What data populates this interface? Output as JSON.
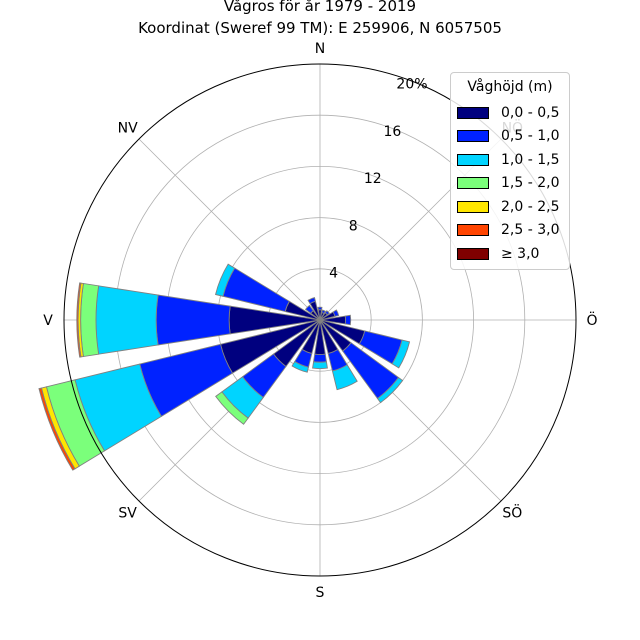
{
  "title_line1": "Vågros för år 1979 - 2019",
  "title_line2": "Koordinat (Sweref 99 TM): E 259906, N 6057505",
  "chart_data": {
    "type": "windrose",
    "directions": [
      "N",
      "NNÖ",
      "NÖ",
      "ÖNÖ",
      "Ö",
      "ÖSÖ",
      "SÖ",
      "SSÖ",
      "S",
      "SSV",
      "SV",
      "VSV",
      "V",
      "VNV",
      "NV",
      "NNV"
    ],
    "compass_labels": [
      {
        "label": "N",
        "angle": 0
      },
      {
        "label": "NÖ",
        "angle": 45
      },
      {
        "label": "Ö",
        "angle": 90
      },
      {
        "label": "SÖ",
        "angle": 135
      },
      {
        "label": "S",
        "angle": 180
      },
      {
        "label": "SV",
        "angle": 225
      },
      {
        "label": "V",
        "angle": 270
      },
      {
        "label": "NV",
        "angle": 315
      }
    ],
    "radial_ticks": [
      "4",
      "8",
      "12",
      "16",
      "20%"
    ],
    "radial_values": [
      4,
      8,
      12,
      16,
      20
    ],
    "rmax": 20,
    "legend_title": "Våghöjd (m)",
    "bins": [
      {
        "label": "0,0 - 0,5",
        "color": "#00007f"
      },
      {
        "label": "0,5 - 1,0",
        "color": "#0022ff"
      },
      {
        "label": "1,0 - 1,5",
        "color": "#00d4ff"
      },
      {
        "label": "1,5 - 2,0",
        "color": "#7bff7b"
      },
      {
        "label": "2,0 - 2,5",
        "color": "#ffe600"
      },
      {
        "label": "2,5 - 3,0",
        "color": "#ff4400"
      },
      {
        "label": "≥ 3,0",
        "color": "#7f0000"
      }
    ],
    "values": [
      [
        0.8,
        0.2,
        0,
        0,
        0,
        0,
        0
      ],
      [
        0.6,
        0.2,
        0,
        0,
        0,
        0,
        0
      ],
      [
        0.7,
        0.2,
        0,
        0,
        0,
        0,
        0
      ],
      [
        1.2,
        0.3,
        0,
        0,
        0,
        0,
        0
      ],
      [
        2.0,
        0.4,
        0,
        0,
        0,
        0,
        0
      ],
      [
        3.6,
        3.0,
        0.6,
        0,
        0,
        0,
        0
      ],
      [
        3.0,
        4.6,
        0.4,
        0,
        0,
        0,
        0
      ],
      [
        2.7,
        1.4,
        1.5,
        0,
        0,
        0,
        0
      ],
      [
        2.7,
        0.6,
        0.5,
        0,
        0,
        0,
        0
      ],
      [
        2.7,
        1.1,
        0.4,
        0,
        0,
        0,
        0
      ],
      [
        4.5,
        3.0,
        2.0,
        0.6,
        0,
        0,
        0
      ],
      [
        8.0,
        6.5,
        5.2,
        2.3,
        0.4,
        0.2,
        0
      ],
      [
        7.1,
        5.7,
        4.7,
        1.2,
        0.2,
        0.1,
        0
      ],
      [
        2.8,
        5.0,
        0.6,
        0,
        0,
        0,
        0
      ],
      [
        0.9,
        0.5,
        0,
        0,
        0,
        0,
        0
      ],
      [
        1.5,
        0.3,
        0,
        0,
        0,
        0,
        0
      ]
    ]
  }
}
